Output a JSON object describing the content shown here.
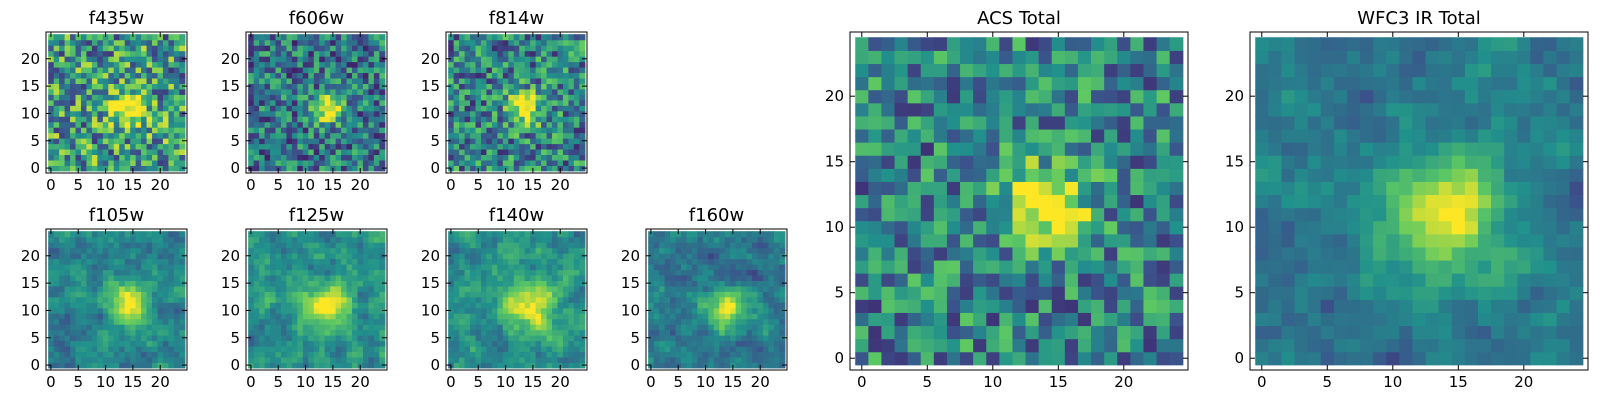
{
  "colormap": [
    "#440154",
    "#3b528b",
    "#21918c",
    "#5ec962",
    "#fde725"
  ],
  "chart_data": [
    {
      "type": "heatmap",
      "title": "f435w",
      "xlim": [
        0,
        24
      ],
      "ylim": [
        0,
        24
      ],
      "xticks": [
        "0",
        "5",
        "10",
        "15",
        "20"
      ],
      "yticks": [
        "0",
        "5",
        "10",
        "15",
        "20"
      ],
      "source_center": [
        14,
        11
      ],
      "source_sigma": 2.5,
      "peak": 0.55,
      "noise": 0.38,
      "base": 0.55,
      "seed": 11,
      "smooth": 0
    },
    {
      "type": "heatmap",
      "title": "f606w",
      "xlim": [
        0,
        24
      ],
      "ylim": [
        0,
        24
      ],
      "xticks": [
        "0",
        "5",
        "10",
        "15",
        "20"
      ],
      "yticks": [
        "0",
        "5",
        "10",
        "15",
        "20"
      ],
      "source_center": [
        14,
        11
      ],
      "source_sigma": 1.8,
      "peak": 0.75,
      "noise": 0.3,
      "base": 0.4,
      "seed": 23,
      "smooth": 0
    },
    {
      "type": "heatmap",
      "title": "f814w",
      "xlim": [
        0,
        24
      ],
      "ylim": [
        0,
        24
      ],
      "xticks": [
        "0",
        "5",
        "10",
        "15",
        "20"
      ],
      "yticks": [
        "0",
        "5",
        "10",
        "15",
        "20"
      ],
      "source_center": [
        13.5,
        11
      ],
      "source_sigma": 2.0,
      "peak": 0.7,
      "noise": 0.32,
      "base": 0.45,
      "seed": 37,
      "smooth": 0
    },
    {
      "type": "heatmap",
      "title": "f105w",
      "xlim": [
        0,
        24
      ],
      "ylim": [
        0,
        24
      ],
      "xticks": [
        "0",
        "5",
        "10",
        "15",
        "20"
      ],
      "yticks": [
        "0",
        "5",
        "10",
        "15",
        "20"
      ],
      "source_center": [
        14,
        11
      ],
      "source_sigma": 2.6,
      "peak": 0.65,
      "noise": 0.3,
      "base": 0.45,
      "seed": 51,
      "smooth": 1
    },
    {
      "type": "heatmap",
      "title": "f125w",
      "xlim": [
        0,
        24
      ],
      "ylim": [
        0,
        24
      ],
      "xticks": [
        "0",
        "5",
        "10",
        "15",
        "20"
      ],
      "yticks": [
        "0",
        "5",
        "10",
        "15",
        "20"
      ],
      "source_center": [
        14,
        11
      ],
      "source_sigma": 2.6,
      "peak": 0.55,
      "noise": 0.32,
      "base": 0.5,
      "seed": 67,
      "smooth": 1
    },
    {
      "type": "heatmap",
      "title": "f140w",
      "xlim": [
        0,
        24
      ],
      "ylim": [
        0,
        24
      ],
      "xticks": [
        "0",
        "5",
        "10",
        "15",
        "20"
      ],
      "yticks": [
        "0",
        "5",
        "10",
        "15",
        "20"
      ],
      "source_center": [
        14,
        11
      ],
      "source_sigma": 3.0,
      "peak": 0.55,
      "noise": 0.32,
      "base": 0.5,
      "seed": 79,
      "smooth": 1
    },
    {
      "type": "heatmap",
      "title": "f160w",
      "xlim": [
        0,
        24
      ],
      "ylim": [
        0,
        24
      ],
      "xticks": [
        "0",
        "5",
        "10",
        "15",
        "20"
      ],
      "yticks": [
        "0",
        "5",
        "10",
        "15",
        "20"
      ],
      "source_center": [
        14,
        10.5
      ],
      "source_sigma": 2.4,
      "peak": 0.65,
      "noise": 0.28,
      "base": 0.4,
      "seed": 97,
      "smooth": 1
    },
    {
      "type": "heatmap",
      "title": "ACS Total",
      "xlim": [
        0,
        24
      ],
      "ylim": [
        0,
        24
      ],
      "xticks": [
        "0",
        "5",
        "10",
        "15",
        "20"
      ],
      "yticks": [
        "0",
        "5",
        "10",
        "15",
        "20"
      ],
      "source_center": [
        14,
        11.5
      ],
      "source_sigma": 2.2,
      "peak": 0.7,
      "noise": 0.3,
      "base": 0.45,
      "seed": 131,
      "smooth": 0
    },
    {
      "type": "heatmap",
      "title": "WFC3 IR Total",
      "xlim": [
        0,
        24
      ],
      "ylim": [
        0,
        24
      ],
      "xticks": [
        "0",
        "5",
        "10",
        "15",
        "20"
      ],
      "yticks": [
        "0",
        "5",
        "10",
        "15",
        "20"
      ],
      "source_center": [
        14,
        11
      ],
      "source_sigma": 3.2,
      "peak": 0.62,
      "noise": 0.22,
      "base": 0.4,
      "seed": 157,
      "smooth": 1
    }
  ]
}
